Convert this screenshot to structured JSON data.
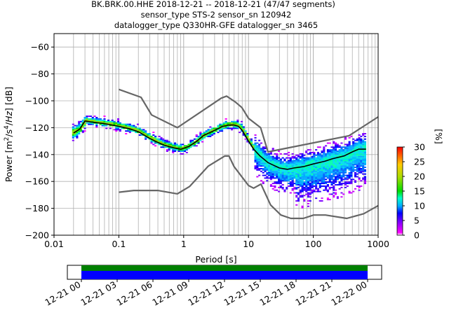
{
  "chart_data": {
    "type": "heatmap",
    "title_lines": [
      "BK.BRK.00.HHE   2018-12-21 -- 2018-12-21  (47/47 segments)",
      "sensor_type STS-2 sensor_sn 120942",
      "datalogger_type Q330HR-GFE datalogger_sn 3465"
    ],
    "xlabel": "Period [s]",
    "ylabel": "Power [m²/s⁴/Hz] [dB]",
    "xscale": "log",
    "xlim": [
      0.01,
      1000
    ],
    "ylim": [
      -200,
      -50
    ],
    "x_ticks": [
      0.01,
      0.1,
      1,
      10,
      100,
      1000
    ],
    "x_tick_labels": [
      "0.01",
      "0.1",
      "1",
      "10",
      "100",
      "1000"
    ],
    "y_ticks": [
      -200,
      -180,
      -160,
      -140,
      -120,
      -100,
      -80,
      -60
    ],
    "y_tick_labels": [
      "−200",
      "−180",
      "−160",
      "−140",
      "−120",
      "−100",
      "−80",
      "−60"
    ],
    "grid": true,
    "colorbar": {
      "label": "[%]",
      "range": [
        0,
        30
      ],
      "ticks": [
        0,
        5,
        10,
        15,
        20,
        25,
        30
      ],
      "tick_labels": [
        "0",
        "5",
        "10",
        "15",
        "20",
        "25",
        "30"
      ]
    },
    "series": [
      {
        "name": "mean",
        "color": "#000000",
        "points": [
          [
            0.02,
            -124
          ],
          [
            0.025,
            -121
          ],
          [
            0.03,
            -115
          ],
          [
            0.04,
            -116
          ],
          [
            0.06,
            -117
          ],
          [
            0.1,
            -119
          ],
          [
            0.15,
            -121
          ],
          [
            0.2,
            -123
          ],
          [
            0.3,
            -128
          ],
          [
            0.4,
            -131
          ],
          [
            0.5,
            -133
          ],
          [
            0.7,
            -135
          ],
          [
            0.9,
            -136
          ],
          [
            1.2,
            -134
          ],
          [
            1.6,
            -130
          ],
          [
            2,
            -126
          ],
          [
            3,
            -122
          ],
          [
            4,
            -119
          ],
          [
            5,
            -118
          ],
          [
            6,
            -118
          ],
          [
            7,
            -119
          ],
          [
            8,
            -122
          ],
          [
            10,
            -130
          ],
          [
            12,
            -136
          ],
          [
            15,
            -141
          ],
          [
            20,
            -146
          ],
          [
            30,
            -150
          ],
          [
            40,
            -151
          ],
          [
            50,
            -150
          ],
          [
            70,
            -149
          ],
          [
            100,
            -147
          ],
          [
            150,
            -145
          ],
          [
            200,
            -143
          ],
          [
            300,
            -141
          ],
          [
            400,
            -138
          ],
          [
            500,
            -136
          ],
          [
            650,
            -136
          ]
        ]
      },
      {
        "name": "NHNM",
        "color": "#666666",
        "points": [
          [
            0.1,
            -91.5
          ],
          [
            0.22,
            -97.4
          ],
          [
            0.32,
            -110.5
          ],
          [
            0.8,
            -120
          ],
          [
            3.8,
            -98
          ],
          [
            4.6,
            -96.5
          ],
          [
            6.3,
            -101
          ],
          [
            7.9,
            -105
          ],
          [
            10,
            -113
          ],
          [
            15.4,
            -120
          ],
          [
            20,
            -138
          ],
          [
            354.8,
            -126
          ],
          [
            1000,
            -112
          ]
        ]
      },
      {
        "name": "NLNM",
        "color": "#666666",
        "points": [
          [
            0.1,
            -168
          ],
          [
            0.17,
            -166.7
          ],
          [
            0.4,
            -166.7
          ],
          [
            0.8,
            -169.2
          ],
          [
            1.24,
            -163.7
          ],
          [
            2.4,
            -148.6
          ],
          [
            4.3,
            -141.1
          ],
          [
            5,
            -141.1
          ],
          [
            6,
            -149
          ],
          [
            10,
            -163
          ],
          [
            12,
            -165
          ],
          [
            15.6,
            -162
          ],
          [
            21.9,
            -177.5
          ],
          [
            31.6,
            -185
          ],
          [
            45,
            -187.5
          ],
          [
            70,
            -187.5
          ],
          [
            101,
            -185
          ],
          [
            154,
            -185
          ],
          [
            328,
            -187.5
          ],
          [
            600,
            -184
          ],
          [
            1000,
            -178
          ]
        ]
      }
    ],
    "time_axis": {
      "tick_labels": [
        "12-21 00",
        "12-21 03",
        "12-21 06",
        "12-21 09",
        "12-21 12",
        "12-21 15",
        "12-21 18",
        "12-21 21",
        "12-22 00"
      ]
    }
  }
}
